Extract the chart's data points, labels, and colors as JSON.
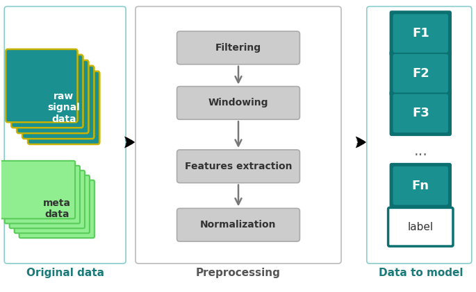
{
  "fig_width": 6.85,
  "fig_height": 4.21,
  "bg_color": "#ffffff",
  "teal_color": "#1a9090",
  "teal_dark": "#0d7070",
  "teal_fill": "#1a9090",
  "green_light": "#90ee90",
  "green_border": "#5acc5a",
  "gray_box_fill": "#cccccc",
  "gray_box_border": "#aaaaaa",
  "section_border_left": "#88cccc",
  "section_border_mid": "#bbbbbb",
  "section_border_right": "#88cccc",
  "title_color": "#1a7a7a",
  "mid_title_color": "#555555",
  "preprocessing_steps": [
    "Filtering",
    "Windowing",
    "Features extraction",
    "Normalization"
  ],
  "feature_labels": [
    "F1",
    "F2",
    "F3",
    "Fn"
  ],
  "dots_text": "...",
  "label_box_text": "label",
  "left_title": "Original data",
  "mid_title": "Preprocessing",
  "right_title": "Data to model",
  "raw_label": "raw\nsignal\ndata",
  "meta_label": "meta\ndata",
  "raw_border_color": "#c8b400",
  "n_raw_cards": 5,
  "n_meta_cards": 5
}
